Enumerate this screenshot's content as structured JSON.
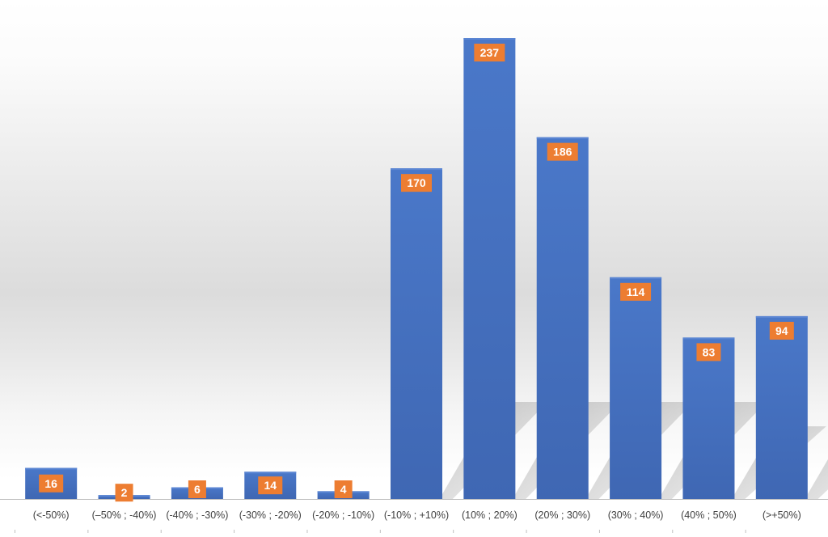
{
  "chart_data": {
    "type": "bar",
    "title": "",
    "xlabel": "",
    "ylabel": "",
    "categories": [
      "(<-50%)",
      "(–50% ; -40%)",
      "(-40% ; -30%)",
      "(-30% ; -20%)",
      "(-20% ; -10%)",
      "(-10% ; +10%)",
      "(10% ; 20%)",
      "(20% ; 30%)",
      "(30% ; 40%)",
      "(40% ; 50%)",
      "(>+50%)"
    ],
    "values": [
      16,
      2,
      6,
      14,
      4,
      170,
      237,
      186,
      114,
      83,
      94
    ],
    "ylim": [
      0,
      237
    ],
    "grid": false,
    "legend": "none",
    "colors": {
      "bar": "#4472C4",
      "bar_dark": "#3B64AE",
      "label_bg": "#ED7D31",
      "label_text": "#FFFFFF",
      "axis_text": "#404040",
      "axis_line": "#BFBFBF"
    }
  }
}
